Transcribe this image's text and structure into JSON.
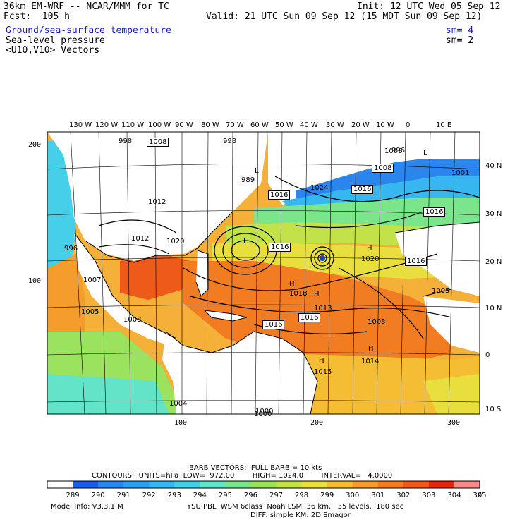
{
  "header": {
    "model": "36km EM-WRF -- NCAR/MMM for TC",
    "init": "Init: 12 UTC Wed 05 Sep 12",
    "fcst": "Fcst:  105 h",
    "valid": "Valid: 21 UTC Sun 09 Sep 12 (15 MDT Sun 09 Sep 12)",
    "field1": "Ground/sea-surface temperature",
    "field1_sm": "sm= 4",
    "field2": "Sea-level pressure",
    "field2_sm": "sm= 2",
    "field3": "<U10,V10> Vectors"
  },
  "top_lon_labels": [
    "130 W",
    "120 W",
    "110 W",
    "100 W",
    "90 W",
    "80 W",
    "70 W",
    "60 W",
    "50 W",
    "40 W",
    "30 W",
    "20 W",
    "10 W",
    "0",
    "10 E"
  ],
  "right_lat_labels": [
    "40 N",
    "30 N",
    "20 N",
    "10 N",
    "0",
    "10 S"
  ],
  "left_grid_labels": [
    "200",
    "100"
  ],
  "bottom_grid_labels": [
    "100",
    "200",
    "300"
  ],
  "pressure_labels": {
    "boxed": [
      "1008",
      "1016",
      "1016",
      "1016",
      "1016",
      "1016",
      "1016",
      "1016",
      "1008"
    ],
    "plain": [
      "998",
      "998",
      "989",
      "1024",
      "1012",
      "1020",
      "1012",
      "1000",
      "1007",
      "1005",
      "1008",
      "996",
      "1020",
      "1018",
      "1003",
      "1014",
      "1015",
      "1005",
      "1004",
      "1000",
      "1008",
      "996",
      "1001",
      "1013"
    ],
    "centers": [
      "L",
      "H",
      "H",
      "L",
      "H",
      "H",
      "H",
      "L"
    ]
  },
  "footer": {
    "barb": "BARB VECTORS:  FULL BARB = 10 kts",
    "contours": "CONTOURS:  UNITS=hPa  LOW=  972.00        HIGH= 1024.0        INTERVAL=   4.0000",
    "model_info": "Model Info: V3.3.1 M",
    "physics": "YSU PBL  WSM 6class  Noah LSM  36 km,   35 levels,  180 sec",
    "physics2": "DIFF: simple KM: 2D Smagor",
    "unit": "K"
  },
  "colorbar": {
    "labels": [
      "289",
      "290",
      "291",
      "292",
      "293",
      "294",
      "295",
      "296",
      "297",
      "298",
      "299",
      "300",
      "301",
      "302",
      "303",
      "304",
      "305"
    ],
    "colors": [
      "#ffffff",
      "#1f5de6",
      "#2a86ec",
      "#2f9ff0",
      "#37b7f0",
      "#46cfe8",
      "#63e3c7",
      "#7ae58a",
      "#9be25f",
      "#c3e24a",
      "#e8de3e",
      "#f5bd33",
      "#f59d2c",
      "#f27c22",
      "#ee5a1a",
      "#e82410",
      "#f48a8a"
    ]
  }
}
